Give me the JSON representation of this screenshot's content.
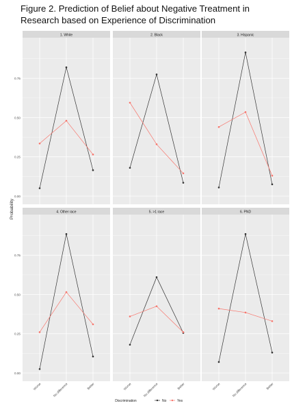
{
  "figure_title": "Figure 2. Prediction of Belief about Negative Treatment in Research based on Experience of Discrimination",
  "colors": {
    "No": "#333333",
    "Yes": "#f8766d",
    "panel_bg": "#ebebeb",
    "strip_bg": "#d9d9d9",
    "grid": "#ffffff"
  },
  "chart_data": {
    "type": "line",
    "ylabel": "Probability",
    "xlabel": "",
    "ylim": [
      0,
      1
    ],
    "yticks": [
      0.0,
      0.25,
      0.5,
      0.75
    ],
    "ytick_labels": [
      "0.00",
      "0.25",
      "0.50",
      "0.75"
    ],
    "categories": [
      "Worse",
      "No difference",
      "Better"
    ],
    "legend": {
      "title": "Discrimination",
      "position": "bottom",
      "entries": [
        "No",
        "Yes"
      ]
    },
    "facets": [
      {
        "title": "1. White",
        "series": [
          {
            "name": "No",
            "values": [
              0.05,
              0.82,
              0.165
            ]
          },
          {
            "name": "Yes",
            "values": [
              0.335,
              0.48,
              0.265
            ]
          }
        ]
      },
      {
        "title": "2. Black",
        "series": [
          {
            "name": "No",
            "values": [
              0.18,
              0.775,
              0.085
            ]
          },
          {
            "name": "Yes",
            "values": [
              0.595,
              0.33,
              0.145
            ]
          }
        ]
      },
      {
        "title": "3. Hispanic",
        "series": [
          {
            "name": "No",
            "values": [
              0.055,
              0.915,
              0.075
            ]
          },
          {
            "name": "Yes",
            "values": [
              0.44,
              0.535,
              0.13
            ]
          }
        ]
      },
      {
        "title": "4. Other race",
        "series": [
          {
            "name": "No",
            "values": [
              0.025,
              0.885,
              0.105
            ]
          },
          {
            "name": "Yes",
            "values": [
              0.26,
              0.515,
              0.31
            ]
          }
        ]
      },
      {
        "title": "5. >1 race",
        "series": [
          {
            "name": "No",
            "values": [
              0.18,
              0.61,
              0.255
            ]
          },
          {
            "name": "Yes",
            "values": [
              0.36,
              0.425,
              0.26
            ]
          }
        ]
      },
      {
        "title": "6. PND",
        "series": [
          {
            "name": "No",
            "values": [
              0.07,
              0.885,
              0.13
            ]
          },
          {
            "name": "Yes",
            "values": [
              0.41,
              0.385,
              0.33
            ]
          }
        ]
      }
    ]
  }
}
